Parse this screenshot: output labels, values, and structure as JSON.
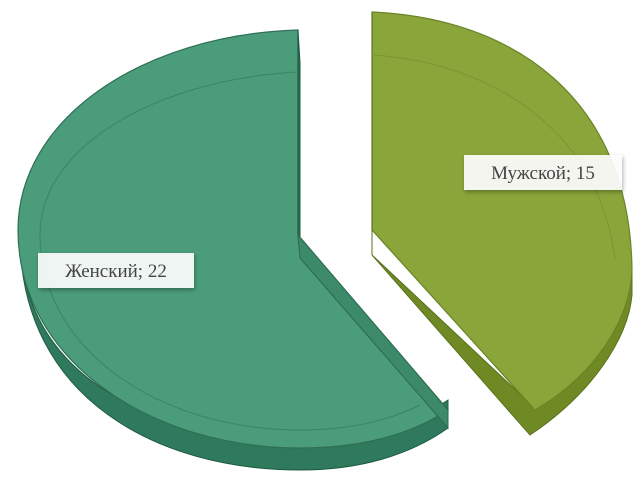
{
  "chart_data": {
    "type": "pie",
    "title": "",
    "slices": [
      {
        "name": "Женский",
        "value": 22,
        "label": "Женский; 22",
        "color": "#4a9c7a"
      },
      {
        "name": "Мужской",
        "value": 15,
        "label": "Мужской; 15",
        "color": "#8aa53a"
      }
    ],
    "style": {
      "3d": true,
      "exploded": "Мужской"
    }
  }
}
